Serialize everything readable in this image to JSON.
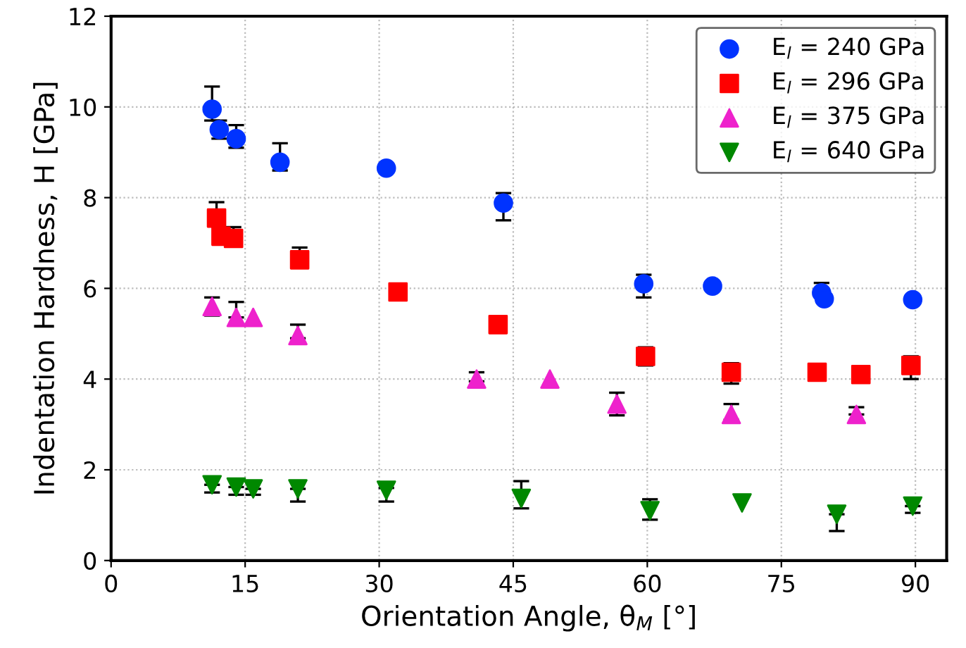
{
  "chart_data": {
    "type": "scatter",
    "xlabel": "Orientation Angle, θ$_{M}$ [°]",
    "ylabel": "Indentation Hardness, H [GPa]",
    "xlim": [
      0,
      93.5
    ],
    "ylim": [
      0,
      12
    ],
    "xticks": [
      0,
      15,
      30,
      45,
      60,
      75,
      90
    ],
    "yticks": [
      0,
      2,
      4,
      6,
      8,
      10,
      12
    ],
    "grid": true,
    "legend": "top right",
    "series": [
      {
        "name": "E$_{l}$ = 240 GPa",
        "color": "#0033ff",
        "marker": "circle",
        "x": [
          11.3,
          12.1,
          14.0,
          18.9,
          30.8,
          43.9,
          59.6,
          67.3,
          79.5,
          79.8,
          89.7
        ],
        "values": [
          9.95,
          9.5,
          9.3,
          8.78,
          8.65,
          7.88,
          6.1,
          6.05,
          5.9,
          5.77,
          5.75
        ],
        "errors": [
          [
            9.7,
            10.45
          ],
          [
            9.3,
            9.7
          ],
          [
            9.1,
            9.6
          ],
          [
            8.6,
            9.2
          ],
          null,
          [
            7.5,
            8.1
          ],
          [
            5.8,
            6.3
          ],
          null,
          [
            5.9,
            6.12
          ],
          null,
          null
        ]
      },
      {
        "name": "E$_{l}$ = 296 GPa",
        "color": "#ff0000",
        "marker": "square",
        "x": [
          11.8,
          12.3,
          13.7,
          21.1,
          32.1,
          43.3,
          59.8,
          69.4,
          79.0,
          83.9,
          89.5
        ],
        "values": [
          7.55,
          7.15,
          7.1,
          6.63,
          5.92,
          5.2,
          4.5,
          4.15,
          4.15,
          4.1,
          4.3
        ],
        "errors": [
          [
            7.55,
            7.9
          ],
          null,
          [
            7.1,
            7.35
          ],
          [
            6.5,
            6.9
          ],
          null,
          null,
          [
            4.3,
            4.7
          ],
          [
            3.9,
            4.35
          ],
          null,
          null,
          [
            4.0,
            4.5
          ]
        ]
      },
      {
        "name": "E$_{l}$ = 375 GPa",
        "color": "#ee22cc",
        "marker": "triangle",
        "x": [
          11.3,
          14.0,
          15.9,
          20.9,
          40.9,
          49.1,
          56.6,
          69.4,
          83.4
        ],
        "values": [
          5.6,
          5.36,
          5.36,
          4.96,
          4.0,
          4.0,
          3.45,
          3.22,
          3.22
        ],
        "errors": [
          [
            5.4,
            5.8
          ],
          [
            5.36,
            5.7
          ],
          null,
          [
            4.9,
            5.2
          ],
          [
            3.95,
            4.15
          ],
          null,
          [
            3.2,
            3.7
          ],
          [
            3.1,
            3.45
          ],
          [
            3.22,
            3.38
          ]
        ]
      },
      {
        "name": "E$_{l}$ = 640 GPa",
        "color": "#008800",
        "marker": "triangle_down",
        "x": [
          11.3,
          14.0,
          15.9,
          20.9,
          30.8,
          45.9,
          60.3,
          70.6,
          81.2,
          89.7
        ],
        "values": [
          1.67,
          1.62,
          1.58,
          1.58,
          1.55,
          1.37,
          1.1,
          1.27,
          1.02,
          1.2
        ],
        "errors": [
          [
            1.5,
            1.67
          ],
          [
            1.45,
            1.62
          ],
          [
            1.45,
            1.58
          ],
          [
            1.3,
            1.58
          ],
          [
            1.3,
            1.6
          ],
          [
            1.15,
            1.75
          ],
          [
            0.9,
            1.35
          ],
          null,
          [
            0.65,
            1.02
          ],
          [
            1.05,
            1.2
          ]
        ]
      }
    ]
  }
}
